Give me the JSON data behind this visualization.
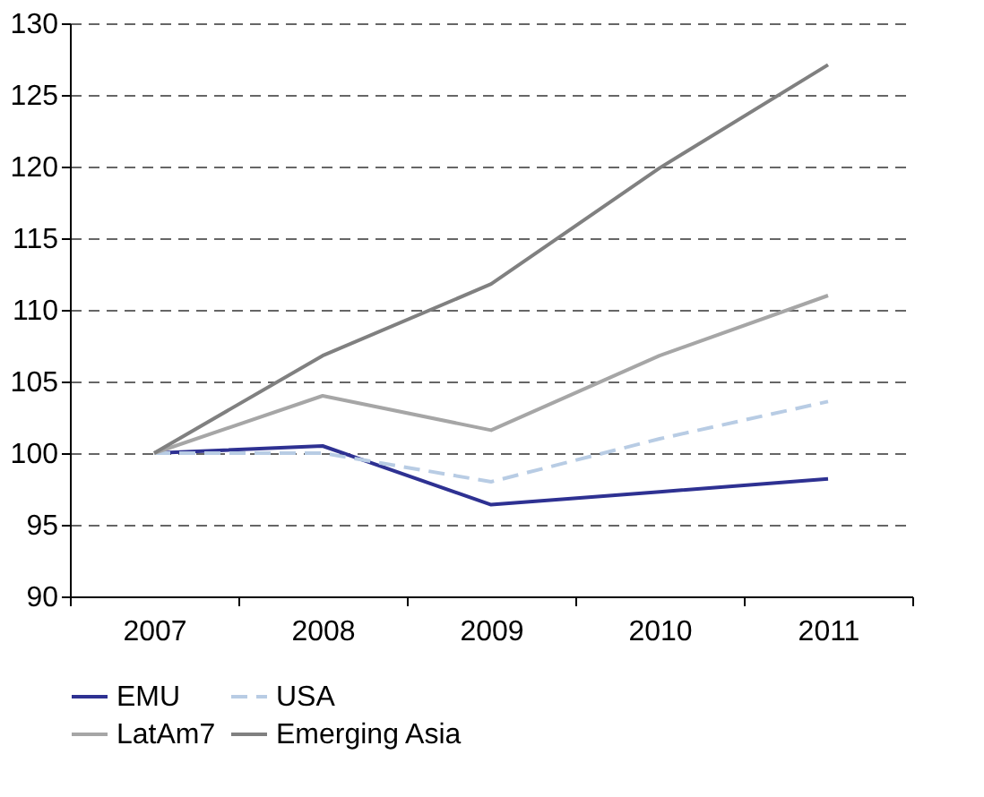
{
  "chart_data": {
    "type": "line",
    "categories": [
      "2007",
      "2008",
      "2009",
      "2010",
      "2011"
    ],
    "series": [
      {
        "name": "EMU",
        "color": "#2e3192",
        "line_style": "solid",
        "values": [
          100,
          100.5,
          96.4,
          97.3,
          98.2
        ]
      },
      {
        "name": "USA",
        "color": "#b8cce4",
        "line_style": "dashed",
        "values": [
          100,
          100,
          98,
          101,
          103.6
        ]
      },
      {
        "name": "LatAm7",
        "color": "#a6a6a6",
        "line_style": "solid",
        "values": [
          100,
          104,
          101.6,
          106.8,
          111
        ]
      },
      {
        "name": "Emerging Asia",
        "color": "#808080",
        "line_style": "solid",
        "values": [
          100,
          106.8,
          111.8,
          119.9,
          127.1
        ]
      }
    ],
    "ylim": [
      90,
      130
    ],
    "yticks": [
      90,
      95,
      100,
      105,
      110,
      115,
      120,
      125,
      130
    ],
    "grid": "y",
    "legend": "bottom",
    "marker": "none"
  }
}
